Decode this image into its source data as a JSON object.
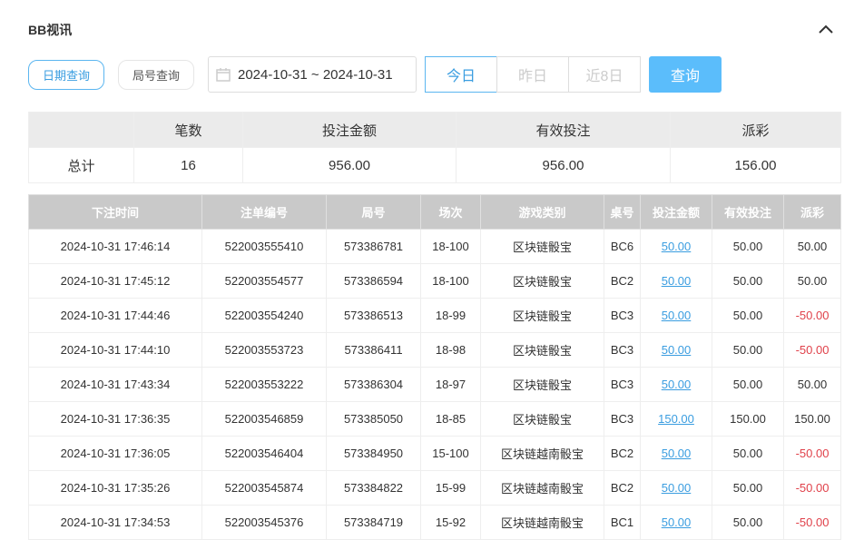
{
  "header": {
    "title": "BB视讯",
    "collapse_icon": "chevron-up-icon"
  },
  "filters": {
    "date_query": "日期查询",
    "round_query": "局号查询",
    "date_range": "2024-10-31 ~ 2024-10-31",
    "today": "今日",
    "yesterday": "昨日",
    "last8": "近8日",
    "query": "查询"
  },
  "colors": {
    "accent": "#5bbdfb",
    "negative": "#e0414a",
    "link": "#3a9de0"
  },
  "summary": {
    "headers": [
      "",
      "笔数",
      "投注金额",
      "有效投注",
      "派彩"
    ],
    "row": [
      "总计",
      "16",
      "956.00",
      "956.00",
      "156.00"
    ]
  },
  "details": {
    "headers": [
      "下注时间",
      "注单编号",
      "局号",
      "场次",
      "游戏类别",
      "桌号",
      "投注金额",
      "有效投注",
      "派彩"
    ],
    "rows": [
      [
        "2024-10-31 17:46:14",
        "522003555410",
        "573386781",
        "18-100",
        "区块链骰宝",
        "BC6",
        "50.00",
        "50.00",
        "50.00"
      ],
      [
        "2024-10-31 17:45:12",
        "522003554577",
        "573386594",
        "18-100",
        "区块链骰宝",
        "BC2",
        "50.00",
        "50.00",
        "50.00"
      ],
      [
        "2024-10-31 17:44:46",
        "522003554240",
        "573386513",
        "18-99",
        "区块链骰宝",
        "BC3",
        "50.00",
        "50.00",
        "-50.00"
      ],
      [
        "2024-10-31 17:44:10",
        "522003553723",
        "573386411",
        "18-98",
        "区块链骰宝",
        "BC3",
        "50.00",
        "50.00",
        "-50.00"
      ],
      [
        "2024-10-31 17:43:34",
        "522003553222",
        "573386304",
        "18-97",
        "区块链骰宝",
        "BC3",
        "50.00",
        "50.00",
        "50.00"
      ],
      [
        "2024-10-31 17:36:35",
        "522003546859",
        "573385050",
        "18-85",
        "区块链骰宝",
        "BC3",
        "150.00",
        "150.00",
        "150.00"
      ],
      [
        "2024-10-31 17:36:05",
        "522003546404",
        "573384950",
        "15-100",
        "区块链越南骰宝",
        "BC2",
        "50.00",
        "50.00",
        "-50.00"
      ],
      [
        "2024-10-31 17:35:26",
        "522003545874",
        "573384822",
        "15-99",
        "区块链越南骰宝",
        "BC2",
        "50.00",
        "50.00",
        "-50.00"
      ],
      [
        "2024-10-31 17:34:53",
        "522003545376",
        "573384719",
        "15-92",
        "区块链越南骰宝",
        "BC1",
        "50.00",
        "50.00",
        "-50.00"
      ]
    ]
  }
}
